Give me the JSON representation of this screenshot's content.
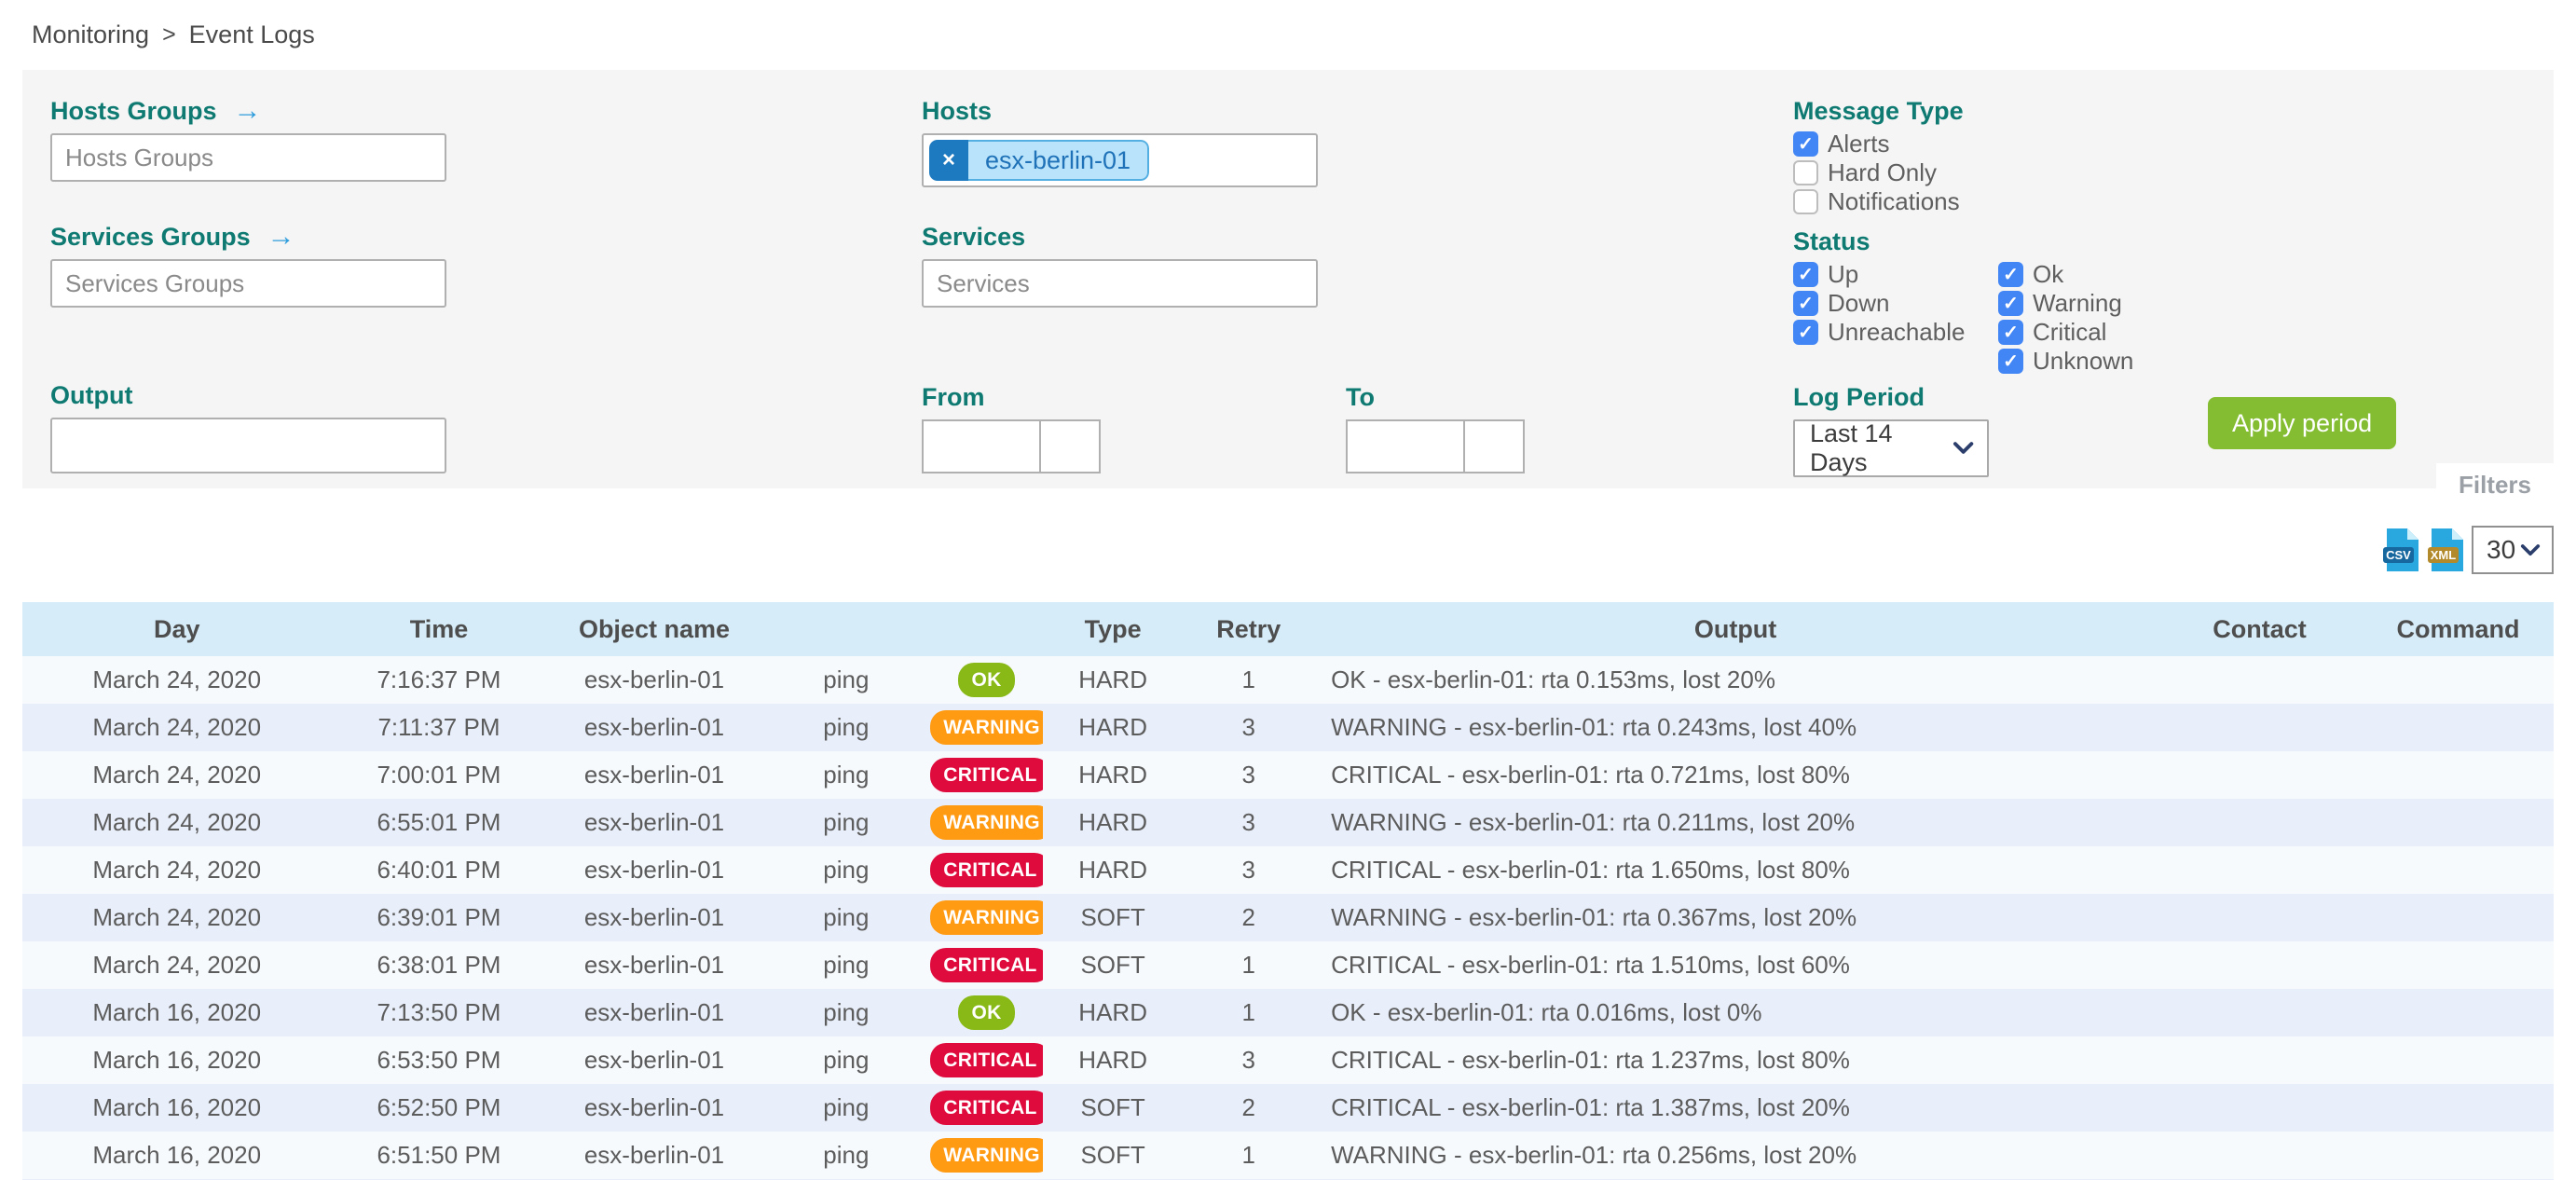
{
  "breadcrumb": {
    "items": [
      "Monitoring",
      "Event Logs"
    ],
    "separator": ">"
  },
  "filters": {
    "panel_label": "Filters",
    "hosts_groups": {
      "label": "Hosts Groups",
      "placeholder": "Hosts Groups",
      "has_arrow": true
    },
    "services_groups": {
      "label": "Services Groups",
      "placeholder": "Services Groups",
      "has_arrow": true
    },
    "hosts": {
      "label": "Hosts",
      "selected_tag": "esx-berlin-01",
      "remove_symbol": "×"
    },
    "services": {
      "label": "Services",
      "placeholder": "Services"
    },
    "output": {
      "label": "Output",
      "value": ""
    },
    "from": {
      "label": "From",
      "date_value": "",
      "time_value": ""
    },
    "to": {
      "label": "To",
      "date_value": "",
      "time_value": ""
    },
    "message_type": {
      "label": "Message Type",
      "options": [
        {
          "label": "Alerts",
          "checked": true
        },
        {
          "label": "Hard Only",
          "checked": false
        },
        {
          "label": "Notifications",
          "checked": false
        }
      ]
    },
    "status": {
      "label": "Status",
      "col1": [
        {
          "label": "Up",
          "checked": true
        },
        {
          "label": "Down",
          "checked": true
        },
        {
          "label": "Unreachable",
          "checked": true
        }
      ],
      "col2": [
        {
          "label": "Ok",
          "checked": true
        },
        {
          "label": "Warning",
          "checked": true
        },
        {
          "label": "Critical",
          "checked": true
        },
        {
          "label": "Unknown",
          "checked": true
        }
      ]
    },
    "log_period": {
      "label": "Log Period",
      "selected": "Last 14 Days"
    },
    "apply_button_label": "Apply period"
  },
  "toolbar": {
    "csv_label": "CSV",
    "xml_label": "XML",
    "page_size": "30"
  },
  "table": {
    "columns": [
      "Day",
      "Time",
      "Object name",
      "",
      "",
      "Type",
      "Retry",
      "Output",
      "Contact",
      "Command"
    ],
    "rows": [
      {
        "day": "March 24, 2020",
        "time": "7:16:37 PM",
        "object": "esx-berlin-01",
        "service": "ping",
        "status": "OK",
        "state_type": "HARD",
        "retry": "1",
        "output": "OK - esx-berlin-01: rta 0.153ms, lost 20%",
        "contact": "",
        "command": ""
      },
      {
        "day": "March 24, 2020",
        "time": "7:11:37 PM",
        "object": "esx-berlin-01",
        "service": "ping",
        "status": "WARNING",
        "state_type": "HARD",
        "retry": "3",
        "output": "WARNING - esx-berlin-01: rta 0.243ms, lost 40%",
        "contact": "",
        "command": ""
      },
      {
        "day": "March 24, 2020",
        "time": "7:00:01 PM",
        "object": "esx-berlin-01",
        "service": "ping",
        "status": "CRITICAL",
        "state_type": "HARD",
        "retry": "3",
        "output": "CRITICAL - esx-berlin-01: rta 0.721ms, lost 80%",
        "contact": "",
        "command": ""
      },
      {
        "day": "March 24, 2020",
        "time": "6:55:01 PM",
        "object": "esx-berlin-01",
        "service": "ping",
        "status": "WARNING",
        "state_type": "HARD",
        "retry": "3",
        "output": "WARNING - esx-berlin-01: rta 0.211ms, lost 20%",
        "contact": "",
        "command": ""
      },
      {
        "day": "March 24, 2020",
        "time": "6:40:01 PM",
        "object": "esx-berlin-01",
        "service": "ping",
        "status": "CRITICAL",
        "state_type": "HARD",
        "retry": "3",
        "output": "CRITICAL - esx-berlin-01: rta 1.650ms, lost 80%",
        "contact": "",
        "command": ""
      },
      {
        "day": "March 24, 2020",
        "time": "6:39:01 PM",
        "object": "esx-berlin-01",
        "service": "ping",
        "status": "WARNING",
        "state_type": "SOFT",
        "retry": "2",
        "output": "WARNING - esx-berlin-01: rta 0.367ms, lost 20%",
        "contact": "",
        "command": ""
      },
      {
        "day": "March 24, 2020",
        "time": "6:38:01 PM",
        "object": "esx-berlin-01",
        "service": "ping",
        "status": "CRITICAL",
        "state_type": "SOFT",
        "retry": "1",
        "output": "CRITICAL - esx-berlin-01: rta 1.510ms, lost 60%",
        "contact": "",
        "command": ""
      },
      {
        "day": "March 16, 2020",
        "time": "7:13:50 PM",
        "object": "esx-berlin-01",
        "service": "ping",
        "status": "OK",
        "state_type": "HARD",
        "retry": "1",
        "output": "OK - esx-berlin-01: rta 0.016ms, lost 0%",
        "contact": "",
        "command": ""
      },
      {
        "day": "March 16, 2020",
        "time": "6:53:50 PM",
        "object": "esx-berlin-01",
        "service": "ping",
        "status": "CRITICAL",
        "state_type": "HARD",
        "retry": "3",
        "output": "CRITICAL - esx-berlin-01: rta 1.237ms, lost 80%",
        "contact": "",
        "command": ""
      },
      {
        "day": "March 16, 2020",
        "time": "6:52:50 PM",
        "object": "esx-berlin-01",
        "service": "ping",
        "status": "CRITICAL",
        "state_type": "SOFT",
        "retry": "2",
        "output": "CRITICAL - esx-berlin-01: rta 1.387ms, lost 20%",
        "contact": "",
        "command": ""
      },
      {
        "day": "March 16, 2020",
        "time": "6:51:50 PM",
        "object": "esx-berlin-01",
        "service": "ping",
        "status": "WARNING",
        "state_type": "SOFT",
        "retry": "1",
        "output": "WARNING - esx-berlin-01: rta 0.256ms, lost 20%",
        "contact": "",
        "command": ""
      }
    ]
  },
  "colors": {
    "label_teal": "#0e7a72",
    "link_blue": "#2f9ddb",
    "checkbox_blue": "#4285f4",
    "apply_green": "#84bd32",
    "status_ok": "#88b917",
    "status_warning": "#ff9a13",
    "status_critical": "#e00b3d",
    "table_header_bg": "#d6ecf8",
    "row_odd": "#f7fafd",
    "row_even": "#e9effa"
  }
}
